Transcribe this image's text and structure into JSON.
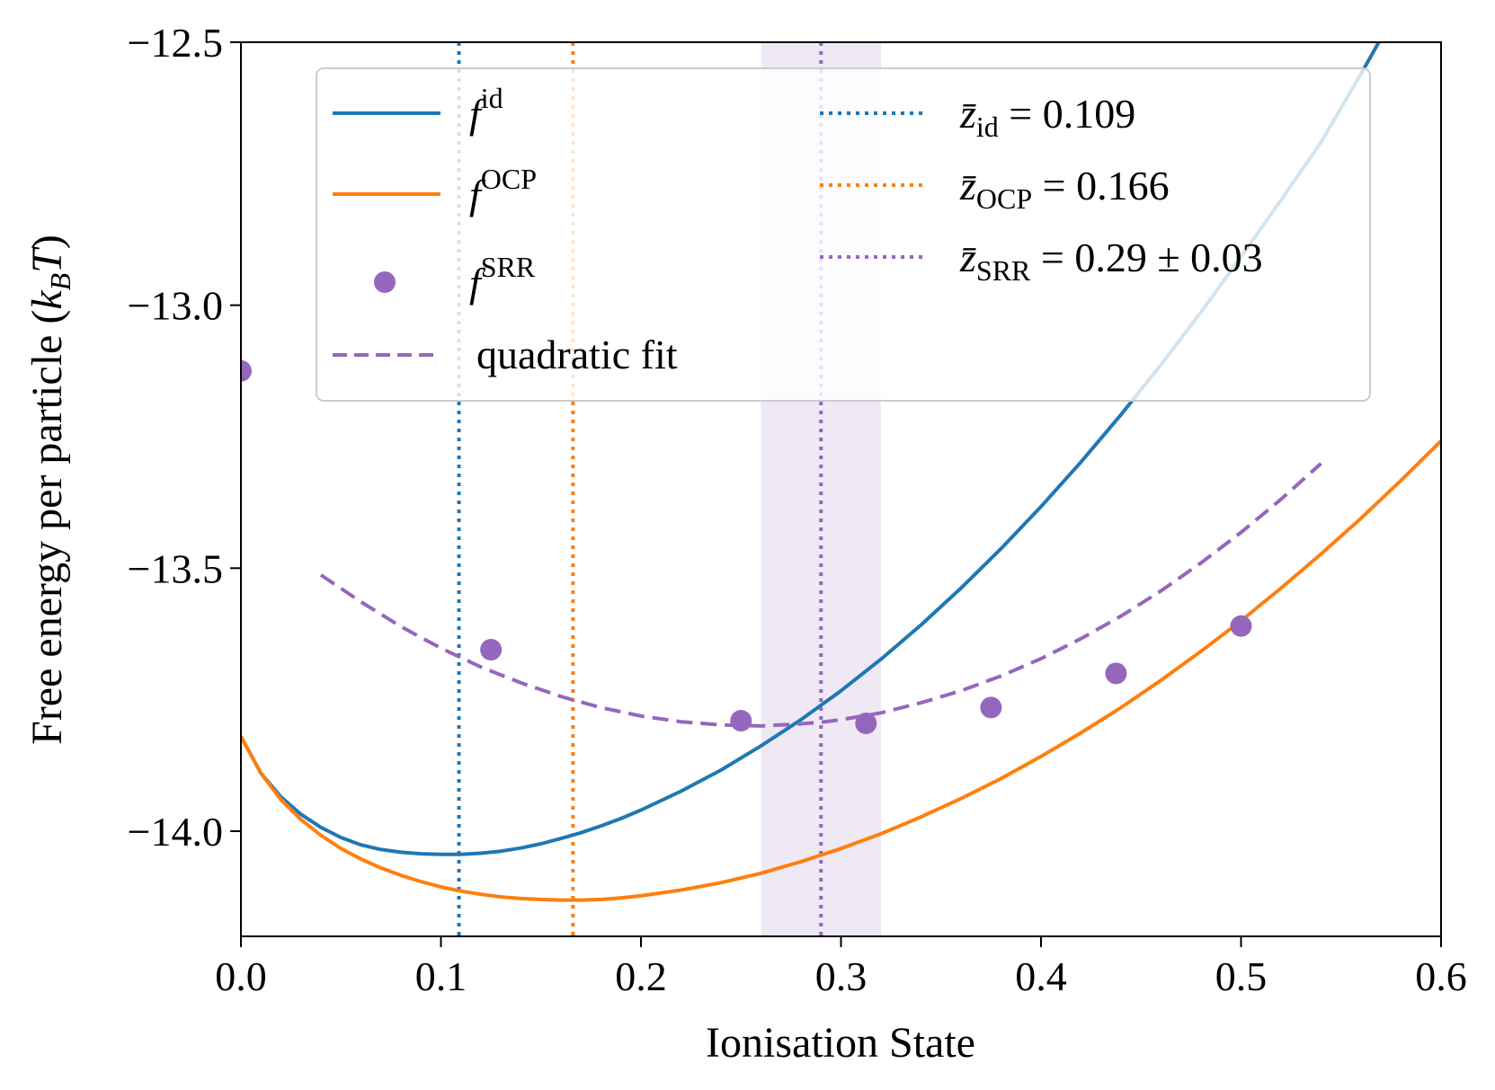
{
  "chart_data": {
    "type": "line",
    "xlabel": "Ionisation State",
    "ylabel": "Free energy per particle (k_B T)",
    "ylabel_parts": {
      "main": "Free energy per particle (",
      "k": "k",
      "sub": "B",
      "t": "T",
      "close": ")"
    },
    "xlim": [
      0.0,
      0.6
    ],
    "ylim": [
      -14.2,
      -12.5
    ],
    "x_ticks": [
      0.0,
      0.1,
      0.2,
      0.3,
      0.4,
      0.5,
      0.6
    ],
    "x_tick_labels": [
      "0.0",
      "0.1",
      "0.2",
      "0.3",
      "0.4",
      "0.5",
      "0.6"
    ],
    "y_ticks": [
      -14.0,
      -13.5,
      -13.0,
      -12.5
    ],
    "y_tick_labels": [
      "−14.0",
      "−13.5",
      "−13.0",
      "−12.5"
    ],
    "grid": false,
    "legend_position": "top",
    "series": [
      {
        "name": "f^id",
        "legend_main": "f",
        "legend_sup": "id",
        "style": "solid",
        "color": "#1f77b4",
        "x": [
          0.0,
          0.01,
          0.02,
          0.03,
          0.04,
          0.05,
          0.06,
          0.07,
          0.08,
          0.09,
          0.1,
          0.11,
          0.12,
          0.13,
          0.14,
          0.15,
          0.16,
          0.17,
          0.18,
          0.19,
          0.2,
          0.22,
          0.24,
          0.26,
          0.28,
          0.3,
          0.32,
          0.34,
          0.36,
          0.38,
          0.4,
          0.42,
          0.44,
          0.46,
          0.48,
          0.5,
          0.52,
          0.54,
          0.56,
          0.58,
          0.6
        ],
        "y": [
          -13.82,
          -13.89,
          -13.935,
          -13.968,
          -13.993,
          -14.012,
          -14.026,
          -14.035,
          -14.04,
          -14.043,
          -14.044,
          -14.044,
          -14.042,
          -14.038,
          -14.032,
          -14.024,
          -14.014,
          -14.003,
          -13.99,
          -13.976,
          -13.96,
          -13.924,
          -13.884,
          -13.838,
          -13.788,
          -13.733,
          -13.673,
          -13.608,
          -13.538,
          -13.463,
          -13.383,
          -13.298,
          -13.208,
          -13.113,
          -13.013,
          -12.908,
          -12.8,
          -12.69,
          -12.56,
          -12.425,
          -12.27
        ]
      },
      {
        "name": "f^OCP",
        "legend_main": "f",
        "legend_sup": "OCP",
        "style": "solid",
        "color": "#ff7f0e",
        "x": [
          0.0,
          0.01,
          0.02,
          0.03,
          0.04,
          0.05,
          0.06,
          0.07,
          0.08,
          0.09,
          0.1,
          0.11,
          0.12,
          0.13,
          0.14,
          0.15,
          0.16,
          0.17,
          0.18,
          0.19,
          0.2,
          0.22,
          0.24,
          0.26,
          0.28,
          0.3,
          0.32,
          0.34,
          0.36,
          0.38,
          0.4,
          0.42,
          0.44,
          0.46,
          0.48,
          0.5,
          0.52,
          0.54,
          0.56,
          0.58,
          0.6
        ],
        "y": [
          -13.82,
          -13.89,
          -13.94,
          -13.978,
          -14.008,
          -14.033,
          -14.053,
          -14.07,
          -14.084,
          -14.096,
          -14.106,
          -14.114,
          -14.12,
          -14.125,
          -14.128,
          -14.13,
          -14.131,
          -14.131,
          -14.13,
          -14.127,
          -14.123,
          -14.112,
          -14.098,
          -14.08,
          -14.058,
          -14.033,
          -14.005,
          -13.973,
          -13.938,
          -13.9,
          -13.858,
          -13.813,
          -13.765,
          -13.713,
          -13.658,
          -13.6,
          -13.538,
          -13.473,
          -13.405,
          -13.333,
          -13.258
        ]
      },
      {
        "name": "f^SRR",
        "legend_main": "f",
        "legend_sup": "SRR",
        "style": "marker",
        "color": "#9467bd",
        "x": [
          0.0,
          0.125,
          0.25,
          0.3125,
          0.375,
          0.4375,
          0.5
        ],
        "y": [
          -13.125,
          -13.655,
          -13.79,
          -13.795,
          -13.765,
          -13.7,
          -13.61
        ]
      },
      {
        "name": "quadratic fit",
        "style": "dashed",
        "color": "#9467bd",
        "x": [
          0.04,
          0.06,
          0.08,
          0.1,
          0.12,
          0.14,
          0.16,
          0.18,
          0.2,
          0.22,
          0.24,
          0.26,
          0.28,
          0.29,
          0.3,
          0.32,
          0.34,
          0.36,
          0.38,
          0.4,
          0.42,
          0.44,
          0.46,
          0.48,
          0.5,
          0.52,
          0.54
        ],
        "y": [
          -13.513,
          -13.564,
          -13.611,
          -13.652,
          -13.688,
          -13.718,
          -13.744,
          -13.765,
          -13.781,
          -13.792,
          -13.798,
          -13.8,
          -13.796,
          -13.793,
          -13.788,
          -13.775,
          -13.756,
          -13.733,
          -13.705,
          -13.672,
          -13.634,
          -13.591,
          -13.543,
          -13.49,
          -13.432,
          -13.369,
          -13.301
        ]
      }
    ],
    "vlines": [
      {
        "x": 0.109,
        "color": "#1f77b4",
        "label_var": "z̄",
        "label_sub": "id",
        "label_rest": " = 0.109"
      },
      {
        "x": 0.166,
        "color": "#ff7f0e",
        "label_var": "z̄",
        "label_sub": "OCP",
        "label_rest": " = 0.166"
      },
      {
        "x": 0.29,
        "color": "#9467bd",
        "label_var": "z̄",
        "label_sub": "SRR",
        "label_rest": " = 0.29 ± 0.03"
      }
    ],
    "shaded_band": {
      "x_from": 0.26,
      "x_to": 0.32,
      "color": "#9467bd"
    }
  }
}
